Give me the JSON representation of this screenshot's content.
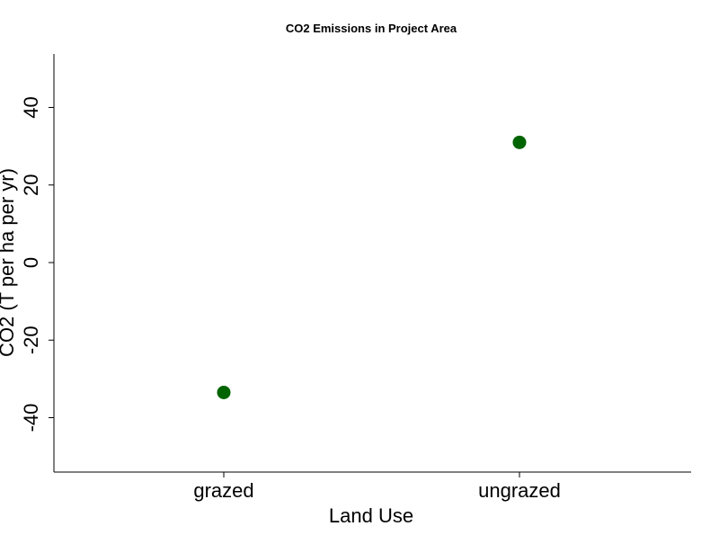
{
  "chart_data": {
    "type": "scatter",
    "title": "CO2 Emissions in Project Area",
    "xlabel": "Land Use",
    "ylabel": "CO2 (T per ha per yr)",
    "categories": [
      "grazed",
      "ungrazed"
    ],
    "values": [
      -33.5,
      31
    ],
    "ylim": [
      -54,
      54
    ],
    "yticks": [
      -40,
      -20,
      0,
      20,
      40
    ],
    "ytick_labels": [
      "-40",
      "-20",
      "0",
      "20",
      "40"
    ],
    "grid": false,
    "legend": "none",
    "marker_color": "#006400"
  }
}
